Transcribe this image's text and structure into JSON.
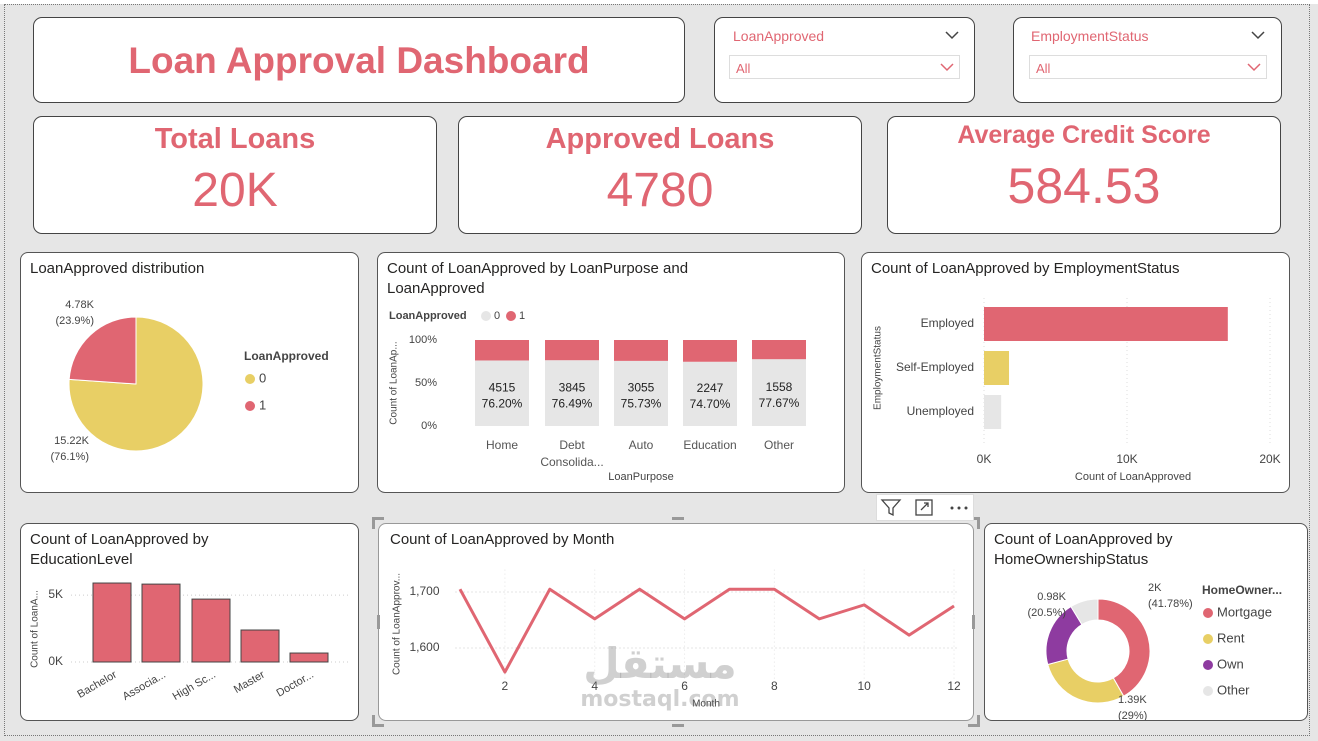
{
  "header": {
    "title": "Loan Approval Dashboard"
  },
  "slicers": [
    {
      "label": "LoanApproved",
      "value": "All"
    },
    {
      "label": "EmploymentStatus",
      "value": "All"
    }
  ],
  "cards": [
    {
      "title": "Total Loans",
      "value": "20K"
    },
    {
      "title": "Approved Loans",
      "value": "4780"
    },
    {
      "title": "Average Credit Score",
      "value": "584.53"
    }
  ],
  "chart_data": [
    {
      "type": "pie",
      "title": "LoanApproved distribution",
      "legend_title": "LoanApproved",
      "categories": [
        "0",
        "1"
      ],
      "values": [
        15220,
        4780
      ],
      "value_labels": [
        "15.22K",
        "4.78K"
      ],
      "percent_labels": [
        "(76.1%)",
        "(23.9%)"
      ],
      "colors": [
        "#e8cf65",
        "#e06672"
      ],
      "legend": "right"
    },
    {
      "type": "stacked_bar_100",
      "title": "Count of LoanApproved by LoanPurpose and LoanApproved",
      "legend_title": "LoanApproved",
      "categories": [
        "Home",
        "Debt Consolida...",
        "Auto",
        "Education",
        "Other"
      ],
      "series": [
        {
          "name": "0",
          "color": "#e6e6e6",
          "values": [
            76.2,
            76.49,
            75.73,
            74.7,
            77.67
          ],
          "value_labels": [
            "76.20%",
            "76.49%",
            "75.73%",
            "74.70%",
            "77.67%"
          ],
          "counts": [
            4515,
            3845,
            3055,
            2247,
            1558
          ]
        },
        {
          "name": "1",
          "color": "#e06672",
          "values": [
            23.8,
            23.51,
            24.27,
            25.3,
            22.33
          ]
        }
      ],
      "ylim": [
        0,
        100
      ],
      "yticks": [
        {
          "value": 0,
          "label": "0%"
        },
        {
          "value": 50,
          "label": "50%"
        },
        {
          "value": 100,
          "label": "100%"
        }
      ],
      "x_label": "LoanPurpose",
      "y_label": "Count of LoanAp..."
    },
    {
      "type": "hbar",
      "title": "Count of LoanApproved by EmploymentStatus",
      "categories": [
        "Employed",
        "Self-Employed",
        "Unemployed"
      ],
      "values": [
        17050,
        1750,
        1200
      ],
      "colors": [
        "#e06672",
        "#e8cf65",
        "#e6e6e6"
      ],
      "xlim": [
        0,
        20000
      ],
      "xticks": [
        {
          "value": 0,
          "label": "0K"
        },
        {
          "value": 10000,
          "label": "10K"
        },
        {
          "value": 20000,
          "label": "20K"
        }
      ],
      "x_label": "Count of LoanApproved",
      "y_label": "EmploymentStatus",
      "grid": true
    },
    {
      "type": "bar",
      "title": "Count of LoanApproved by EducationLevel",
      "categories": [
        "Bachelor",
        "Associa...",
        "High Sc...",
        "Master",
        "Doctor..."
      ],
      "values": [
        5900,
        5820,
        4700,
        2390,
        670
      ],
      "color": "#e06672",
      "ylim": [
        0,
        6500
      ],
      "yticks": [
        {
          "value": 0,
          "label": "0K"
        },
        {
          "value": 5000,
          "label": "5K"
        }
      ],
      "y_label": "Count of LoanA...",
      "grid": true
    },
    {
      "type": "line",
      "title": "Count of LoanApproved by Month",
      "x": [
        1,
        2,
        3,
        4,
        5,
        6,
        7,
        8,
        9,
        10,
        11,
        12
      ],
      "values": [
        1705,
        1557,
        1705,
        1652,
        1705,
        1652,
        1705,
        1705,
        1652,
        1677,
        1623,
        1675
      ],
      "color": "#e06672",
      "xlim": [
        0.9,
        12.1
      ],
      "xticks": [
        2,
        4,
        6,
        8,
        10,
        12
      ],
      "ylim": [
        1540,
        1740
      ],
      "yticks": [
        {
          "value": 1600,
          "label": "1,600"
        },
        {
          "value": 1700,
          "label": "1,700"
        }
      ],
      "x_label": "Month",
      "y_label": "Count of LoanApprov...",
      "grid": true
    },
    {
      "type": "donut",
      "title": "Count of LoanApproved by HomeOwnershipStatus",
      "legend_title": "HomeOwner...",
      "categories": [
        "Mortgage",
        "Rent",
        "Own",
        "Other"
      ],
      "values": [
        2000,
        1390,
        980,
        417
      ],
      "value_labels": [
        "2K",
        "1.39K",
        "0.98K",
        null
      ],
      "percent_labels": [
        "(41.78%)",
        "(29%)",
        "(20.5%)",
        null
      ],
      "colors": [
        "#e06672",
        "#e8cf65",
        "#8e3ba0",
        "#e6e6e6"
      ],
      "legend": "right"
    }
  ],
  "watermark": {
    "arabic": "مستقل",
    "latin": "mostaql.com"
  }
}
